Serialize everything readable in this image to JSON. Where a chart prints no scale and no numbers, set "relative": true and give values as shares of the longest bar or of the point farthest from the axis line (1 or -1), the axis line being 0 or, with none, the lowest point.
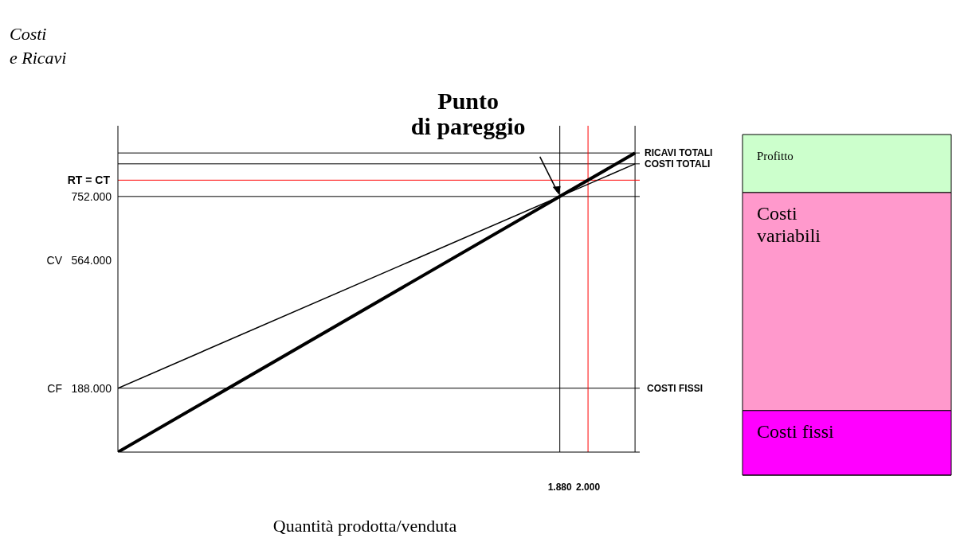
{
  "chart_data": [
    {
      "type": "line",
      "ylabel": "Costi\ne Ricavi",
      "xlabel": "Quantità prodotta/venduta",
      "series": [
        {
          "name": "RICAVI TOTALI",
          "color": "#000000",
          "x": [
            0,
            1880,
            2200
          ],
          "values": [
            0,
            752000,
            880000
          ]
        },
        {
          "name": "COSTI TOTALI",
          "color": "#000000",
          "x": [
            0,
            1880,
            2200
          ],
          "values": [
            188000,
            752000,
            848000
          ]
        }
      ],
      "xlim": [
        0,
        2220
      ],
      "xticks": [
        {
          "value": 1880,
          "label": "1.880"
        },
        {
          "value": 2000,
          "label": "2.000"
        }
      ],
      "ylim": [
        0,
        960000
      ],
      "yticks": [
        {
          "value": 188000,
          "label": "188.000"
        },
        {
          "value": 564000,
          "label": "564.000"
        },
        {
          "value": 752000,
          "label": "752.000"
        }
      ],
      "ref_lines": [
        {
          "axis": "y",
          "value": 188000,
          "label": "COSTI FISSI",
          "color": "#000000"
        },
        {
          "axis": "y",
          "value": 752000,
          "color": "#000000"
        },
        {
          "axis": "y",
          "value": 848000,
          "color": "#000000"
        },
        {
          "axis": "y",
          "value": 880000,
          "color": "#000000"
        },
        {
          "axis": "x",
          "value": 1880,
          "color": "#000000"
        },
        {
          "axis": "x",
          "value": 2200,
          "color": "#000000"
        },
        {
          "axis": "x",
          "value": 2000,
          "color": "#ff0000"
        },
        {
          "axis": "y",
          "value": 800000,
          "color": "#ff0000"
        }
      ],
      "annotations": [
        {
          "text": "Punto\ndi pareggio",
          "x": 1880,
          "y": 752000
        },
        "CF",
        "CV",
        "RT = CT"
      ]
    },
    {
      "type": "bar",
      "stacked": true,
      "relative": true,
      "categories": [
        null
      ],
      "series": [
        {
          "name": "Costi fissi",
          "color": "#ff00ff",
          "values": [
            0.19
          ]
        },
        {
          "name": "Costi variabili",
          "color": "#ff99cc",
          "values": [
            0.64
          ]
        },
        {
          "name": "Profitto",
          "color": "#ccffcc",
          "values": [
            0.17
          ]
        }
      ]
    }
  ]
}
